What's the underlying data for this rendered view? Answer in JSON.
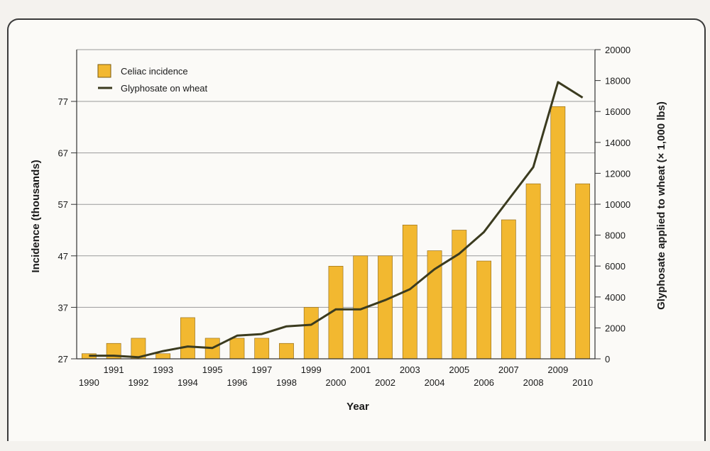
{
  "chart_data": {
    "type": "bar",
    "xlabel": "Year",
    "ylabel": "Incidence (thousands)",
    "y2label": "Glyphosate applied to wheat (× 1,000 lbs)",
    "categories": [
      "1990",
      "1991",
      "1992",
      "1993",
      "1994",
      "1995",
      "1996",
      "1997",
      "1998",
      "1999",
      "2000",
      "2001",
      "2002",
      "2003",
      "2004",
      "2005",
      "2006",
      "2007",
      "2008",
      "2009",
      "2010"
    ],
    "ylim": [
      27,
      77
    ],
    "yticks": [
      "27",
      "37",
      "47",
      "57",
      "67",
      "77"
    ],
    "y2lim": [
      0,
      20000
    ],
    "y2ticks": [
      "0",
      "2000",
      "4000",
      "6000",
      "8000",
      "10000",
      "12000",
      "14000",
      "16000",
      "18000",
      "20000"
    ],
    "series": [
      {
        "name": "Celiac incidence",
        "type": "bar",
        "axis": "left",
        "color": "#f2b830",
        "values": [
          28,
          30,
          31,
          28,
          35,
          31,
          31,
          31,
          30,
          37,
          45,
          47,
          47,
          53,
          48,
          52,
          46,
          54,
          61,
          76,
          61
        ]
      },
      {
        "name": "Glyphosate on wheat",
        "type": "line",
        "axis": "right",
        "color": "#3b3b1f",
        "values": [
          200,
          200,
          100,
          500,
          800,
          700,
          1500,
          1600,
          2100,
          2200,
          3200,
          3200,
          3800,
          4500,
          5800,
          6800,
          8200,
          10300,
          12400,
          17900,
          16900
        ]
      }
    ],
    "grid": true,
    "legend_position": "top-left"
  }
}
